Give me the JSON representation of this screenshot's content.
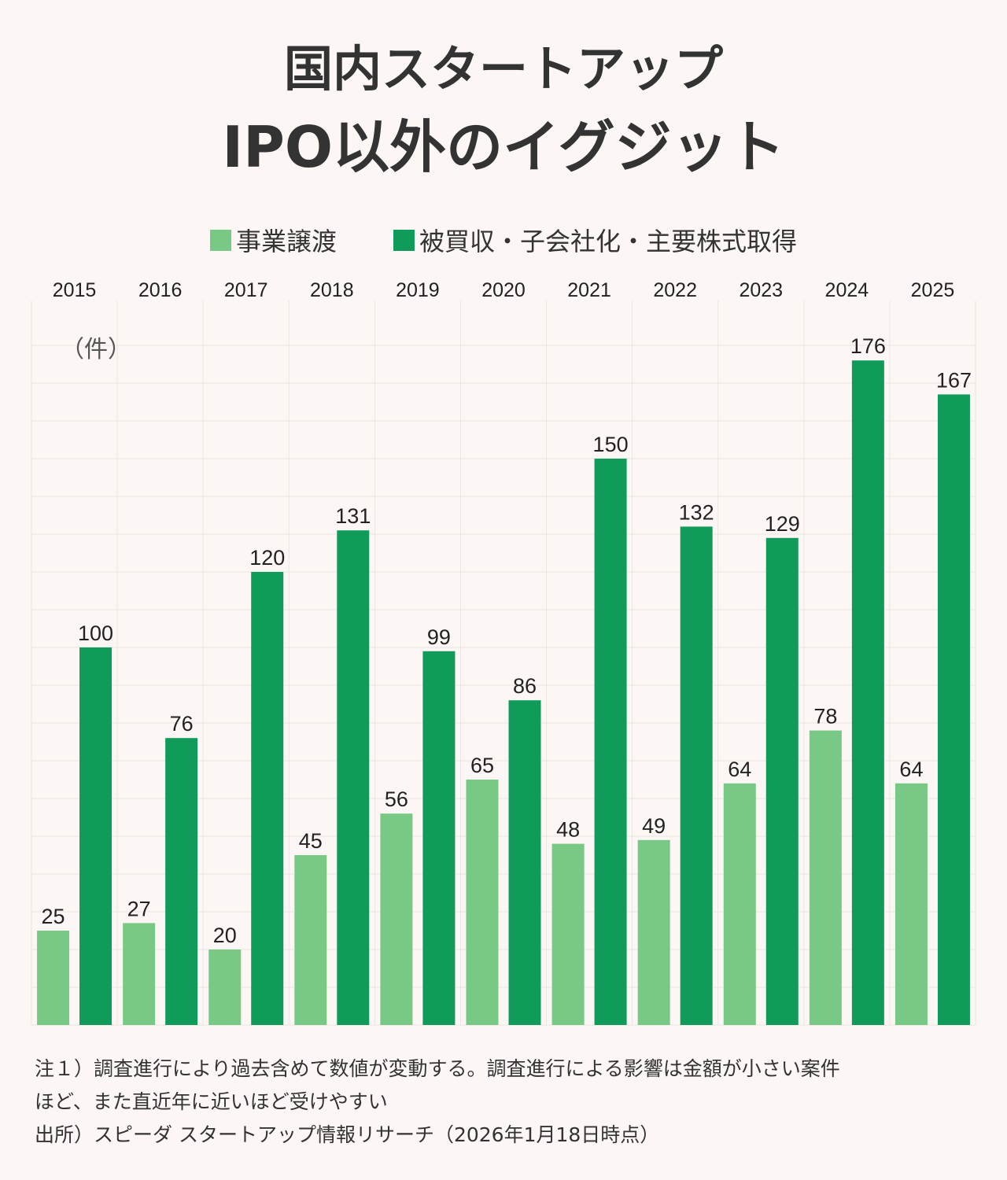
{
  "title_line1": "国内スタートアップ",
  "title_line2": "IPO以外のイグジット",
  "legend": {
    "series1": "事業譲渡",
    "series2": "被買収・子会社化・主要株式取得"
  },
  "colors": {
    "series1": "#78c985",
    "series2": "#119b5a",
    "background": "#fcf7f4",
    "grid": "#ece6e2",
    "text": "#333333"
  },
  "notes": {
    "line1": "注１）調査進行により過去含めて数値が変動する。調査進行による影響は金額が小さい案件",
    "line2": "ほど、また直近年に近いほど受けやすい",
    "line3": "出所）スピーダ スタートアップ情報リサーチ（2026年1月18日時点）"
  },
  "chart_data": {
    "type": "bar",
    "title": "国内スタートアップ IPO以外のイグジット",
    "ylabel": "（件）",
    "xlabel": "",
    "categories": [
      "2015",
      "2016",
      "2017",
      "2018",
      "2019",
      "2020",
      "2021",
      "2022",
      "2023",
      "2024",
      "2025"
    ],
    "series": [
      {
        "name": "事業譲渡",
        "values": [
          25,
          27,
          20,
          45,
          56,
          65,
          48,
          49,
          64,
          78,
          64
        ]
      },
      {
        "name": "被買収・子会社化・主要株式取得",
        "values": [
          100,
          76,
          120,
          131,
          99,
          86,
          150,
          132,
          129,
          176,
          167
        ]
      }
    ],
    "ylim": [
      0,
      185
    ],
    "grid": true,
    "x_axis_position": "top",
    "legend_position": "top-center"
  }
}
